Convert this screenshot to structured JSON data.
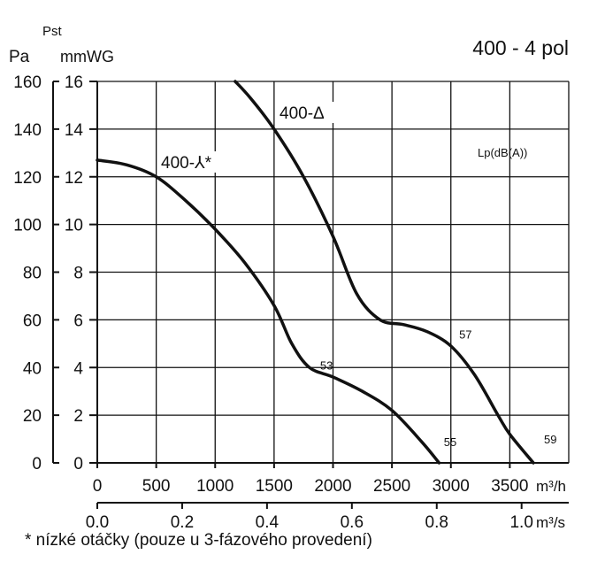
{
  "chart_data": {
    "type": "line",
    "title": "400 - 4 pol",
    "ylabel_symbol": "Pst",
    "ylabel_pa": "Pa",
    "ylabel_mmwg": "mmWG",
    "xlabel_m3h": "m³/h",
    "xlabel_m3s": "m³/s",
    "lp_label": "Lp(dB(A))",
    "xlim": [
      0,
      4000
    ],
    "ylim_pa": [
      0,
      160
    ],
    "ylim_mmwg": [
      0,
      16
    ],
    "x_ticks_m3h": [
      "0",
      "500",
      "1000",
      "1500",
      "2000",
      "2500",
      "3000",
      "3500"
    ],
    "x_ticks_m3s": [
      "0.0",
      "0.2",
      "0.4",
      "0.6",
      "0.8",
      "1.0"
    ],
    "y_ticks_pa": [
      "0",
      "20",
      "40",
      "60",
      "80",
      "100",
      "120",
      "140",
      "160"
    ],
    "y_ticks_mmwg": [
      "0",
      "2",
      "4",
      "6",
      "8",
      "10",
      "12",
      "14",
      "16"
    ],
    "grid": true,
    "series": [
      {
        "name": "400-⅄*",
        "x": [
          0,
          250,
          500,
          750,
          1000,
          1250,
          1500,
          1650,
          1800,
          2000,
          2250,
          2500,
          2750,
          2900
        ],
        "y": [
          127,
          125,
          120,
          110,
          98,
          84,
          66,
          50,
          40,
          36,
          30,
          22,
          9,
          0
        ]
      },
      {
        "name": "400-Δ",
        "x": [
          1170,
          1300,
          1500,
          1750,
          2000,
          2200,
          2400,
          2600,
          2800,
          3000,
          3200,
          3400,
          3500,
          3700
        ],
        "y": [
          160,
          153,
          140,
          120,
          95,
          71,
          60,
          58,
          55,
          49,
          37,
          20,
          12,
          0
        ]
      }
    ],
    "noise_labels": [
      {
        "text": "53",
        "x": 1800,
        "y": 41
      },
      {
        "text": "55",
        "x": 2850,
        "y": 9
      },
      {
        "text": "57",
        "x": 2980,
        "y": 54
      },
      {
        "text": "59",
        "x": 3700,
        "y": 10
      }
    ],
    "footnote": "* nízké otáčky (pouze u 3-fázového provedení)"
  }
}
